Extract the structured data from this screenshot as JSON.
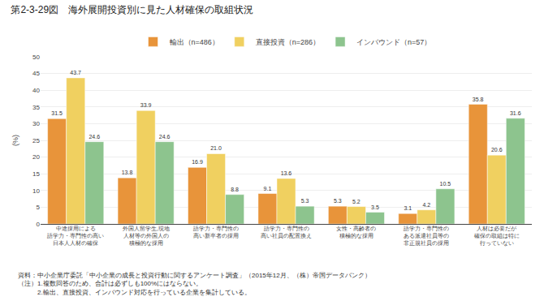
{
  "chart_data": {
    "type": "bar",
    "title": "第2-3-29図　海外展開投資別に見た人材確保の取組状況",
    "ylabel": "(%)",
    "categories": [
      "中途採用による\n語学力・専門性の高い\n日本人人材の確保",
      "外国人留学生,現地\n人材等の外国人の\n積極的な採用",
      "語学力・専門性の\n高い新卒者の採用",
      "語学力・専門性の\n高い社員の配置換え",
      "女性・高齢者の\n積極的な採用",
      "語学力・専門性の\nある派遣社員等の\n非正規社員の採用",
      "人材は必要だが\n確保の取組は特に\n行っていない"
    ],
    "series": [
      {
        "name": "輸出（n=486）",
        "color": "#E8943A",
        "values": [
          31.5,
          13.8,
          16.9,
          9.1,
          5.3,
          3.1,
          35.8
        ],
        "value_labels": [
          "31.5",
          "13.8",
          "16.9",
          "9.1",
          "5.3",
          "3.1",
          "35.8"
        ]
      },
      {
        "name": "直接投資（n=286）",
        "color": "#F0D060",
        "values": [
          43.7,
          33.9,
          21.0,
          13.6,
          5.2,
          4.2,
          20.6
        ],
        "value_labels": [
          "43.7",
          "33.9",
          "21.0",
          "13.6",
          "5.2",
          "4.2",
          "20.6"
        ]
      },
      {
        "name": "インバウンド（n=57）",
        "color": "#8DC48E",
        "values": [
          24.6,
          24.6,
          8.8,
          5.3,
          3.5,
          10.5,
          31.6
        ],
        "value_labels": [
          "24.6",
          "24.6",
          "8.8",
          "5.3",
          "3.5",
          "10.5",
          "31.6"
        ]
      }
    ],
    "ylim": [
      0,
      50
    ],
    "yticks": [
      0,
      5,
      10,
      15,
      20,
      25,
      30,
      35,
      40,
      45,
      50
    ],
    "grid": true,
    "legend": "top",
    "data_labels": true,
    "annotations": [
      "資料：中小企業庁委託「中小企業の成長と投資行動に関するアンケート調査」（2015年12月、（株）帝国データバンク）",
      "（注）1.複数回答のため、合計は必ずしも100%にはならない。",
      "　　　2.輸出、直接投資、インバウンド対応を行っている企業を集計している。"
    ]
  }
}
